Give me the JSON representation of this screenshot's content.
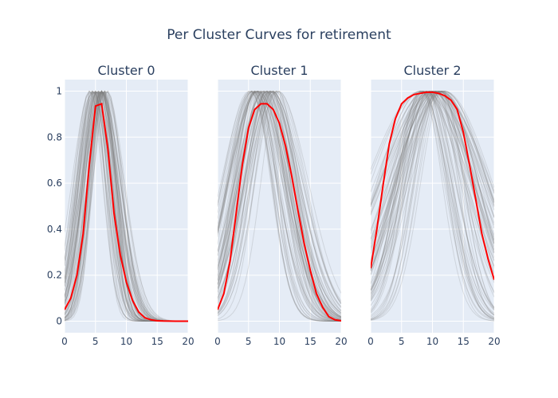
{
  "chart_data": {
    "type": "line",
    "title": "Per Cluster Curves for retirement",
    "colors": {
      "plot_bg": "#E5ECF6",
      "grid": "#ffffff",
      "mean_line": "#ff0000",
      "member_lines": "#808080",
      "text": "#2a3f5f"
    },
    "x_ticks": [
      "0",
      "5",
      "10",
      "15",
      "20"
    ],
    "y_ticks": [
      "0",
      "0.2",
      "0.4",
      "0.6",
      "0.8",
      "1"
    ],
    "xlim": [
      0,
      20
    ],
    "ylim": [
      -0.05,
      1.05
    ],
    "panels": [
      {
        "title": "Cluster 0",
        "mean_curve": {
          "x": [
            0,
            1,
            2,
            3,
            4,
            5,
            6,
            7,
            8,
            9,
            10,
            11,
            12,
            13,
            14,
            15,
            16,
            17,
            18,
            19,
            20
          ],
          "y": [
            0.05,
            0.1,
            0.2,
            0.38,
            0.68,
            0.935,
            0.945,
            0.75,
            0.47,
            0.29,
            0.17,
            0.09,
            0.04,
            0.015,
            0.006,
            0.002,
            0.001,
            0.0005,
            0.0002,
            0.0001,
            0.0
          ]
        }
      },
      {
        "title": "Cluster 1",
        "mean_curve": {
          "x": [
            0,
            1,
            2,
            3,
            4,
            5,
            6,
            7,
            8,
            9,
            10,
            11,
            12,
            13,
            14,
            15,
            16,
            17,
            18,
            19,
            20
          ],
          "y": [
            0.05,
            0.12,
            0.26,
            0.47,
            0.68,
            0.84,
            0.92,
            0.945,
            0.945,
            0.92,
            0.86,
            0.76,
            0.63,
            0.48,
            0.34,
            0.22,
            0.12,
            0.06,
            0.02,
            0.006,
            0.002
          ]
        }
      },
      {
        "title": "Cluster 2",
        "mean_curve": {
          "x": [
            0,
            1,
            2,
            3,
            4,
            5,
            6,
            7,
            8,
            9,
            10,
            11,
            12,
            13,
            14,
            15,
            16,
            17,
            18,
            19,
            20
          ],
          "y": [
            0.23,
            0.4,
            0.59,
            0.77,
            0.88,
            0.945,
            0.97,
            0.985,
            0.99,
            0.995,
            0.995,
            0.99,
            0.98,
            0.96,
            0.92,
            0.82,
            0.68,
            0.53,
            0.38,
            0.27,
            0.18
          ]
        }
      }
    ]
  }
}
